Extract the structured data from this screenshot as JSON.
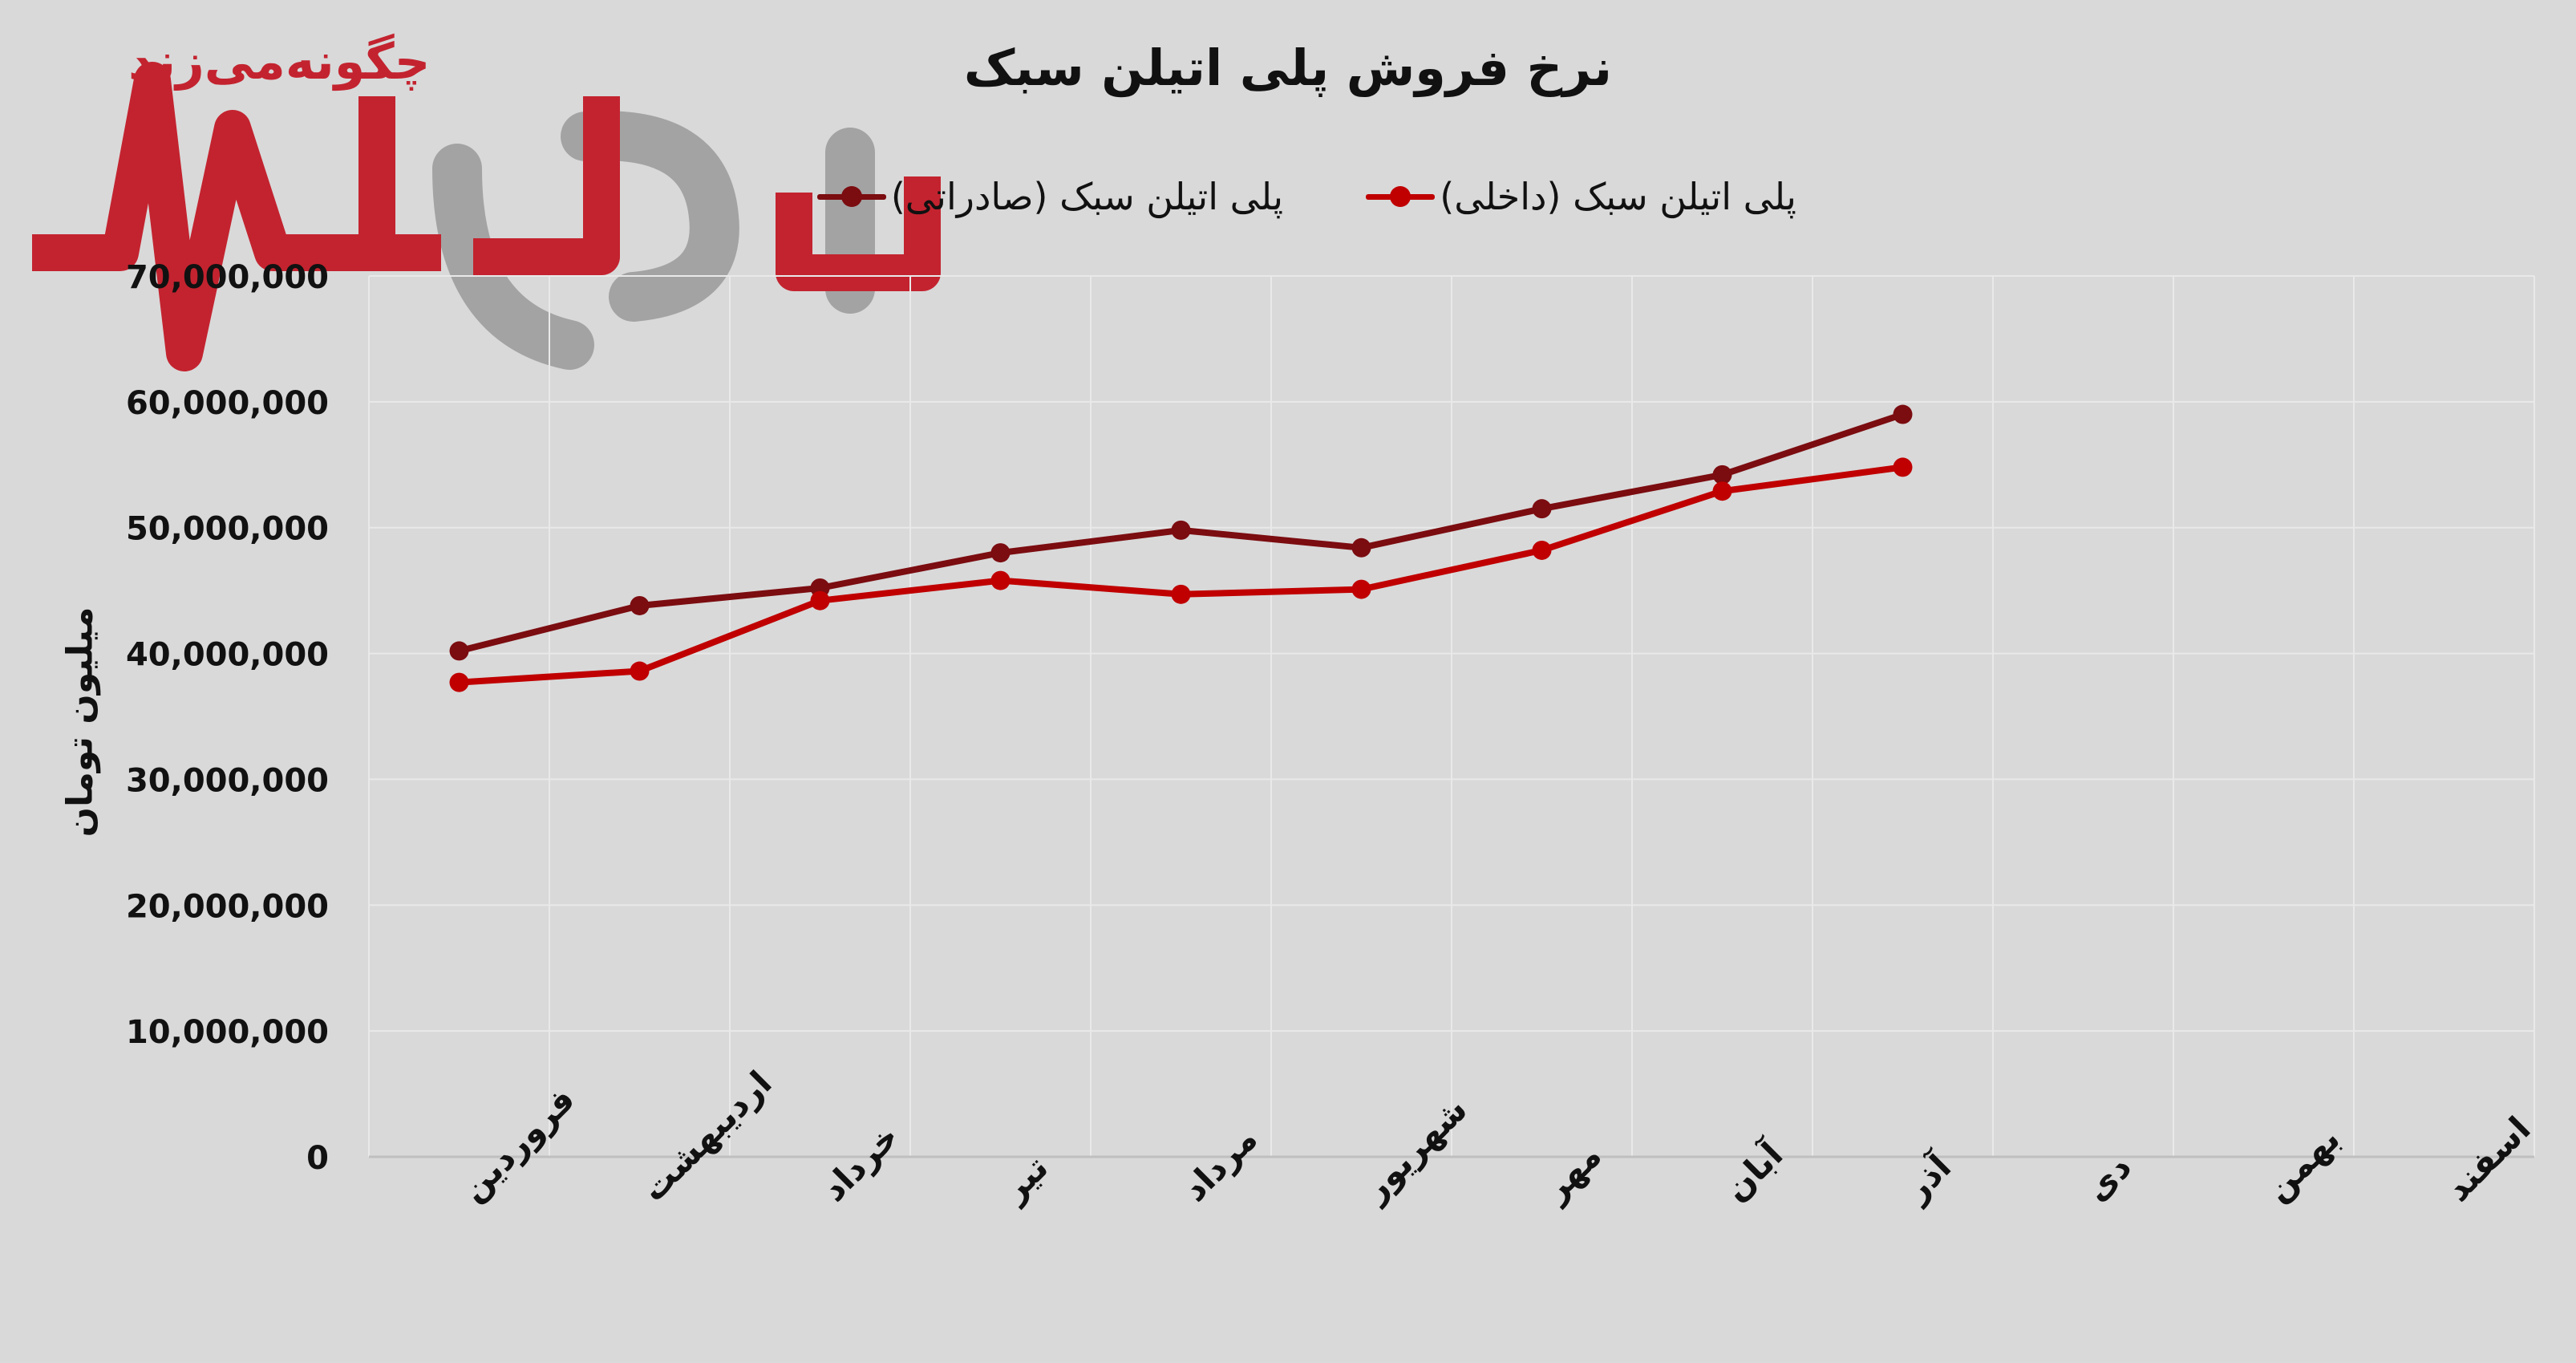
{
  "watermark": {
    "tagline": "چگونه‌می‌زند",
    "name": "نبض بازار"
  },
  "chart_data": {
    "type": "line",
    "title": "نرخ فروش پلی اتیلن سبک",
    "xlabel": "",
    "ylabel": "میلیون تومان",
    "categories": [
      "فروردین",
      "اردیبهشت",
      "خرداد",
      "تیر",
      "مرداد",
      "شهریور",
      "مهر",
      "آبان",
      "آذر",
      "دی",
      "بهمن",
      "اسفند"
    ],
    "series": [
      {
        "name": "پلی اتیلن سبک (داخلی)",
        "color": "#c00000",
        "values": [
          37700000,
          38600000,
          44200000,
          45800000,
          44700000,
          45100000,
          48200000,
          52900000,
          54800000,
          null,
          null,
          null
        ]
      },
      {
        "name": "پلی اتیلن سبک (صادراتی)",
        "color": "#7b0c10",
        "values": [
          40200000,
          43800000,
          45200000,
          48000000,
          49800000,
          48400000,
          51500000,
          54200000,
          59000000,
          null,
          null,
          null
        ]
      }
    ],
    "ylim": [
      0,
      70000000
    ],
    "yticks": [
      0,
      10000000,
      20000000,
      30000000,
      40000000,
      50000000,
      60000000,
      70000000
    ],
    "ytick_labels": [
      "0",
      "10,000,000",
      "20,000,000",
      "30,000,000",
      "40,000,000",
      "50,000,000",
      "60,000,000",
      "70,000,000"
    ],
    "grid": true,
    "legend": "top"
  },
  "colors": {
    "background": "#d9d9d9",
    "grid": "#e9e9e9",
    "axis": "#bfbfbf",
    "watermark_red": "#c3232f",
    "watermark_gray": "#a3a3a3"
  }
}
